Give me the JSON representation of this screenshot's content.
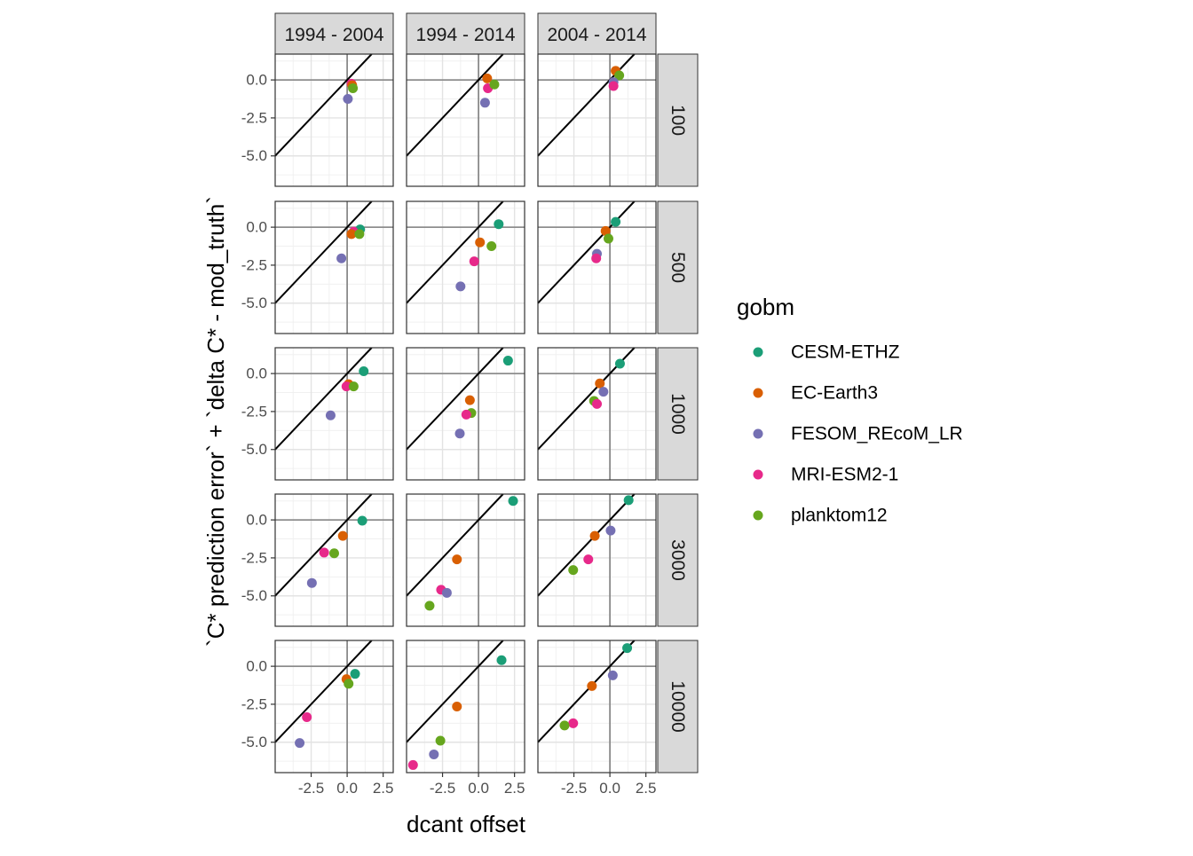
{
  "chart_data": {
    "type": "scatter",
    "xlabel": "dcant offset",
    "ylabel": "`C* prediction error` + `delta C* - mod_truth`",
    "xlim": [
      -5.0,
      3.2
    ],
    "ylim": [
      -7.0,
      1.7
    ],
    "x_ticks": [
      -2.5,
      0.0,
      2.5
    ],
    "x_tick_labels": [
      "-2.5",
      "0.0",
      "2.5"
    ],
    "y_ticks": [
      0.0,
      -2.5,
      -5.0
    ],
    "y_tick_labels": [
      "0.0",
      "-2.5",
      "-5.0"
    ],
    "reference_line": "y = x",
    "grid": true,
    "legend": {
      "title": "gobm",
      "placement": "right",
      "entries": [
        "CESM-ETHZ",
        "EC-Earth3",
        "FESOM_REcoM_LR",
        "MRI-ESM2-1",
        "planktom12"
      ]
    },
    "colors": {
      "CESM-ETHZ": "#1b9e77",
      "EC-Earth3": "#d95f02",
      "FESOM_REcoM_LR": "#7570b3",
      "MRI-ESM2-1": "#e7298a",
      "planktom12": "#66a61e"
    },
    "columns": [
      "1994 - 2004",
      "1994 - 2014",
      "2004 - 2014"
    ],
    "rows": [
      "100",
      "500",
      "1000",
      "3000",
      "10000"
    ],
    "panels": [
      {
        "column": "1994 - 2004",
        "row": "100",
        "points": [
          {
            "gobm": "MRI-ESM2-1",
            "x": 0.3,
            "y": -0.25
          },
          {
            "gobm": "FESOM_REcoM_LR",
            "x": 0.05,
            "y": -1.25
          },
          {
            "gobm": "EC-Earth3",
            "x": 0.35,
            "y": -0.35
          },
          {
            "gobm": "planktom12",
            "x": 0.4,
            "y": -0.55
          }
        ]
      },
      {
        "column": "1994 - 2014",
        "row": "100",
        "points": [
          {
            "gobm": "EC-Earth3",
            "x": 0.6,
            "y": 0.1
          },
          {
            "gobm": "MRI-ESM2-1",
            "x": 0.65,
            "y": -0.55
          },
          {
            "gobm": "planktom12",
            "x": 1.1,
            "y": -0.3
          },
          {
            "gobm": "FESOM_REcoM_LR",
            "x": 0.45,
            "y": -1.5
          }
        ]
      },
      {
        "column": "2004 - 2014",
        "row": "100",
        "points": [
          {
            "gobm": "EC-Earth3",
            "x": 0.4,
            "y": 0.6
          },
          {
            "gobm": "planktom12",
            "x": 0.65,
            "y": 0.3
          },
          {
            "gobm": "FESOM_REcoM_LR",
            "x": 0.25,
            "y": -0.15
          },
          {
            "gobm": "MRI-ESM2-1",
            "x": 0.25,
            "y": -0.4
          }
        ]
      },
      {
        "column": "1994 - 2004",
        "row": "500",
        "points": [
          {
            "gobm": "CESM-ETHZ",
            "x": 0.9,
            "y": -0.15
          },
          {
            "gobm": "MRI-ESM2-1",
            "x": 0.45,
            "y": -0.3
          },
          {
            "gobm": "EC-Earth3",
            "x": 0.3,
            "y": -0.45
          },
          {
            "gobm": "planktom12",
            "x": 0.85,
            "y": -0.45
          },
          {
            "gobm": "FESOM_REcoM_LR",
            "x": -0.4,
            "y": -2.05
          }
        ]
      },
      {
        "column": "1994 - 2014",
        "row": "500",
        "points": [
          {
            "gobm": "CESM-ETHZ",
            "x": 1.4,
            "y": 0.2
          },
          {
            "gobm": "EC-Earth3",
            "x": 0.1,
            "y": -1.0
          },
          {
            "gobm": "planktom12",
            "x": 0.9,
            "y": -1.25
          },
          {
            "gobm": "MRI-ESM2-1",
            "x": -0.3,
            "y": -2.25
          },
          {
            "gobm": "FESOM_REcoM_LR",
            "x": -1.25,
            "y": -3.9
          }
        ]
      },
      {
        "column": "2004 - 2014",
        "row": "500",
        "points": [
          {
            "gobm": "CESM-ETHZ",
            "x": 0.4,
            "y": 0.35
          },
          {
            "gobm": "EC-Earth3",
            "x": -0.3,
            "y": -0.25
          },
          {
            "gobm": "planktom12",
            "x": -0.1,
            "y": -0.75
          },
          {
            "gobm": "FESOM_REcoM_LR",
            "x": -0.9,
            "y": -1.75
          },
          {
            "gobm": "MRI-ESM2-1",
            "x": -0.95,
            "y": -2.05
          }
        ]
      },
      {
        "column": "1994 - 2004",
        "row": "1000",
        "points": [
          {
            "gobm": "CESM-ETHZ",
            "x": 1.15,
            "y": 0.15
          },
          {
            "gobm": "EC-Earth3",
            "x": 0.1,
            "y": -0.7
          },
          {
            "gobm": "MRI-ESM2-1",
            "x": -0.05,
            "y": -0.85
          },
          {
            "gobm": "planktom12",
            "x": 0.45,
            "y": -0.85
          },
          {
            "gobm": "FESOM_REcoM_LR",
            "x": -1.15,
            "y": -2.75
          }
        ]
      },
      {
        "column": "1994 - 2014",
        "row": "1000",
        "points": [
          {
            "gobm": "CESM-ETHZ",
            "x": 2.05,
            "y": 0.85
          },
          {
            "gobm": "EC-Earth3",
            "x": -0.6,
            "y": -1.75
          },
          {
            "gobm": "planktom12",
            "x": -0.5,
            "y": -2.6
          },
          {
            "gobm": "MRI-ESM2-1",
            "x": -0.85,
            "y": -2.7
          },
          {
            "gobm": "FESOM_REcoM_LR",
            "x": -1.3,
            "y": -3.95
          }
        ]
      },
      {
        "column": "2004 - 2014",
        "row": "1000",
        "points": [
          {
            "gobm": "CESM-ETHZ",
            "x": 0.7,
            "y": 0.65
          },
          {
            "gobm": "EC-Earth3",
            "x": -0.7,
            "y": -0.65
          },
          {
            "gobm": "FESOM_REcoM_LR",
            "x": -0.45,
            "y": -1.2
          },
          {
            "gobm": "planktom12",
            "x": -1.1,
            "y": -1.8
          },
          {
            "gobm": "MRI-ESM2-1",
            "x": -0.9,
            "y": -2.0
          }
        ]
      },
      {
        "column": "1994 - 2004",
        "row": "3000",
        "points": [
          {
            "gobm": "CESM-ETHZ",
            "x": 1.05,
            "y": -0.05
          },
          {
            "gobm": "EC-Earth3",
            "x": -0.3,
            "y": -1.05
          },
          {
            "gobm": "MRI-ESM2-1",
            "x": -1.6,
            "y": -2.15
          },
          {
            "gobm": "planktom12",
            "x": -0.9,
            "y": -2.2
          },
          {
            "gobm": "FESOM_REcoM_LR",
            "x": -2.45,
            "y": -4.15
          }
        ]
      },
      {
        "column": "1994 - 2014",
        "row": "3000",
        "points": [
          {
            "gobm": "CESM-ETHZ",
            "x": 2.4,
            "y": 1.25
          },
          {
            "gobm": "EC-Earth3",
            "x": -1.5,
            "y": -2.6
          },
          {
            "gobm": "MRI-ESM2-1",
            "x": -2.6,
            "y": -4.6
          },
          {
            "gobm": "FESOM_REcoM_LR",
            "x": -2.2,
            "y": -4.8
          },
          {
            "gobm": "planktom12",
            "x": -3.4,
            "y": -5.65
          }
        ]
      },
      {
        "column": "2004 - 2014",
        "row": "3000",
        "points": [
          {
            "gobm": "CESM-ETHZ",
            "x": 1.3,
            "y": 1.3
          },
          {
            "gobm": "EC-Earth3",
            "x": -1.05,
            "y": -1.05
          },
          {
            "gobm": "FESOM_REcoM_LR",
            "x": 0.05,
            "y": -0.7
          },
          {
            "gobm": "MRI-ESM2-1",
            "x": -1.5,
            "y": -2.6
          },
          {
            "gobm": "planktom12",
            "x": -2.55,
            "y": -3.3
          }
        ]
      },
      {
        "column": "1994 - 2004",
        "row": "10000",
        "points": [
          {
            "gobm": "CESM-ETHZ",
            "x": 0.55,
            "y": -0.5
          },
          {
            "gobm": "EC-Earth3",
            "x": -0.05,
            "y": -0.85
          },
          {
            "gobm": "planktom12",
            "x": 0.1,
            "y": -1.15
          },
          {
            "gobm": "MRI-ESM2-1",
            "x": -2.8,
            "y": -3.35
          },
          {
            "gobm": "FESOM_REcoM_LR",
            "x": -3.3,
            "y": -5.05
          }
        ]
      },
      {
        "column": "1994 - 2014",
        "row": "10000",
        "points": [
          {
            "gobm": "CESM-ETHZ",
            "x": 1.6,
            "y": 0.4
          },
          {
            "gobm": "EC-Earth3",
            "x": -1.5,
            "y": -2.65
          },
          {
            "gobm": "planktom12",
            "x": -2.65,
            "y": -4.9
          },
          {
            "gobm": "FESOM_REcoM_LR",
            "x": -3.1,
            "y": -5.8
          },
          {
            "gobm": "MRI-ESM2-1",
            "x": -4.55,
            "y": -6.5
          }
        ]
      },
      {
        "column": "2004 - 2014",
        "row": "10000",
        "points": [
          {
            "gobm": "CESM-ETHZ",
            "x": 1.2,
            "y": 1.2
          },
          {
            "gobm": "FESOM_REcoM_LR",
            "x": 0.2,
            "y": -0.6
          },
          {
            "gobm": "EC-Earth3",
            "x": -1.25,
            "y": -1.3
          },
          {
            "gobm": "MRI-ESM2-1",
            "x": -2.55,
            "y": -3.75
          },
          {
            "gobm": "planktom12",
            "x": -3.15,
            "y": -3.9
          }
        ]
      }
    ]
  }
}
